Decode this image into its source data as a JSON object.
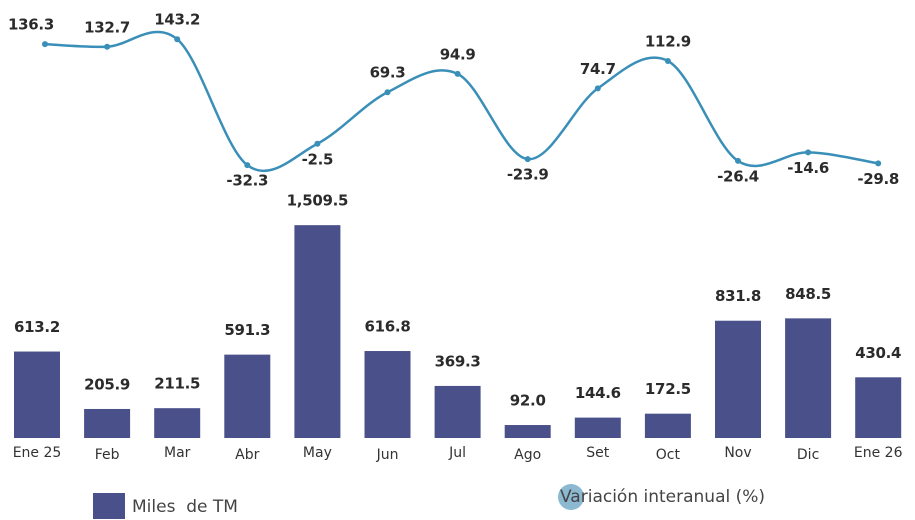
{
  "chart_data": {
    "type": "bar-line",
    "categories": [
      "Ene 25",
      "Feb",
      "Mar",
      "Abr",
      "May",
      "Jun",
      "Jul",
      "Ago",
      "Set",
      "Oct",
      "Nov",
      "Dic",
      "Ene 26"
    ],
    "series": [
      {
        "name": "Miles  de TM",
        "type": "bar",
        "color": "#4a5089",
        "values": [
          613.2,
          205.9,
          211.5,
          591.3,
          1509.5,
          616.8,
          369.3,
          92.0,
          144.6,
          172.5,
          831.8,
          848.5,
          430.4
        ],
        "value_labels": [
          "613.2",
          "205.9",
          "211.5",
          "591.3",
          "1,509.5",
          "616.8",
          "369.3",
          "92.0",
          "144.6",
          "172.5",
          "831.8",
          "848.5",
          "430.4"
        ]
      },
      {
        "name": "Variación interanual (%)",
        "type": "line",
        "axis": "y2",
        "color": "#3a8fb8",
        "legend_color": "#8cb9d1",
        "values": [
          136.3,
          132.7,
          143.2,
          -32.3,
          -2.5,
          69.3,
          94.9,
          -23.9,
          74.7,
          112.9,
          -26.4,
          -14.6,
          -29.8
        ]
      }
    ],
    "ylim": [
      0,
      2000
    ],
    "y2lim": [
      -60,
      170
    ],
    "legend": "bottom"
  }
}
